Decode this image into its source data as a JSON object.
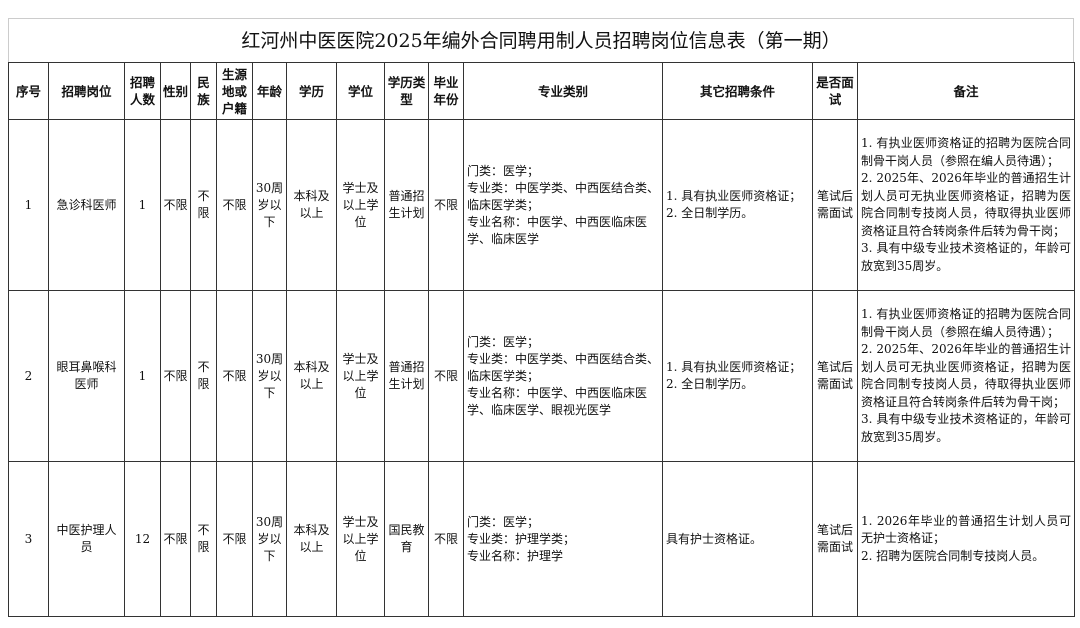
{
  "title": "红河州中医医院2025年编外合同聘用制人员招聘岗位信息表（第一期）",
  "headers": [
    "序号",
    "招聘岗位",
    "招聘人数",
    "性别",
    "民族",
    "生源地或户籍",
    "年龄",
    "学历",
    "学位",
    "学历类型",
    "毕业年份",
    "专业类别",
    "其它招聘条件",
    "是否面试",
    "备注"
  ],
  "rows": [
    {
      "no": "1",
      "position": "急诊科医师",
      "count": "1",
      "gender": "不限",
      "ethnicity": "不限",
      "origin": "不限",
      "age": "30周岁以下",
      "education": "本科及以上",
      "degree": "学士及以上学位",
      "edu_type": "普通招生计划",
      "grad_year": "不限",
      "major": "门类：医学；\n专业类：中医学类、中西医结合类、临床医学类；\n专业名称：中医学、中西医临床医学、临床医学",
      "other": "1. 具有执业医师资格证；\n2. 全日制学历。",
      "interview": "笔试后需面试",
      "notes": "1. 有执业医师资格证的招聘为医院合同制骨干岗人员（参照在编人员待遇）；\n2. 2025年、2026年毕业的普通招生计划人员可无执业医师资格证，招聘为医院合同制专技岗人员，待取得执业医师资格证且符合转岗条件后转为骨干岗；\n3. 具有中级专业技术资格证的，年龄可放宽到35周岁。"
    },
    {
      "no": "2",
      "position": "眼耳鼻喉科医师",
      "count": "1",
      "gender": "不限",
      "ethnicity": "不限",
      "origin": "不限",
      "age": "30周岁以下",
      "education": "本科及以上",
      "degree": "学士及以上学位",
      "edu_type": "普通招生计划",
      "grad_year": "不限",
      "major": "门类：医学；\n专业类：中医学类、中西医结合类、临床医学类；\n专业名称：中医学、中西医临床医学、临床医学、眼视光医学",
      "other": "1. 具有执业医师资格证；\n2. 全日制学历。",
      "interview": "笔试后需面试",
      "notes": "1. 有执业医师资格证的招聘为医院合同制骨干岗人员（参照在编人员待遇）；\n2. 2025年、2026年毕业的普通招生计划人员可无执业医师资格证，招聘为医院合同制专技岗人员，待取得执业医师资格证且符合转岗条件后转为骨干岗；\n3. 具有中级专业技术资格证的，年龄可放宽到35周岁。"
    },
    {
      "no": "3",
      "position": "中医护理人员",
      "count": "12",
      "gender": "不限",
      "ethnicity": "不限",
      "origin": "不限",
      "age": "30周岁以下",
      "education": "本科及以上",
      "degree": "学士及以上学位",
      "edu_type": "国民教育",
      "grad_year": "不限",
      "major": "门类：医学；\n专业类：护理学类；\n专业名称：护理学",
      "other": "具有护士资格证。",
      "interview": "笔试后需面试",
      "notes": "1. 2026年毕业的普通招生计划人员可无护士资格证；\n2. 招聘为医院合同制专技岗人员。"
    }
  ]
}
